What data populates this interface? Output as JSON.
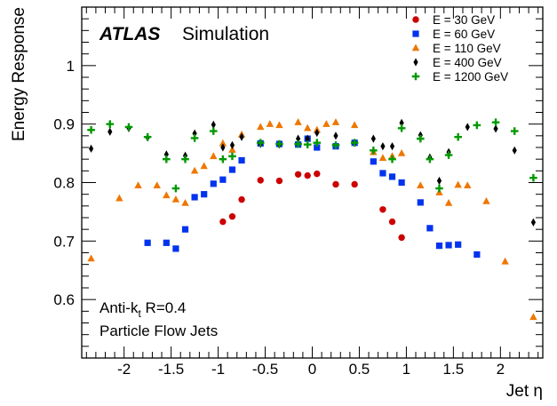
{
  "chart_data": {
    "type": "scatter",
    "xlabel": "Jet η",
    "ylabel": "Energy Response",
    "xlim": [
      -2.45,
      2.45
    ],
    "ylim": [
      0.5,
      1.1
    ],
    "x_ticks": [
      "-2",
      "-1.5",
      "-1",
      "-0.5",
      "0",
      "0.5",
      "1",
      "1.5",
      "2"
    ],
    "y_ticks": [
      "0.6",
      "0.7",
      "0.8",
      "0.9",
      "1"
    ],
    "atlas_label": "ATLAS",
    "atlas_sublabel": "Simulation",
    "annotations": {
      "algorithm": "Anti-k",
      "algorithm_sub": "t",
      "algorithm_rest": " R=0.4",
      "jet_type": "Particle Flow Jets"
    },
    "legend_position": "top-right",
    "series": [
      {
        "name": "E = 30 GeV",
        "color": "#cc0000",
        "marker": "circle",
        "x": [
          -0.95,
          -0.85,
          -0.75,
          -0.55,
          -0.35,
          -0.15,
          -0.05,
          0.05,
          0.25,
          0.45,
          0.75,
          0.85,
          0.95
        ],
        "y": [
          0.733,
          0.742,
          0.771,
          0.804,
          0.803,
          0.814,
          0.812,
          0.815,
          0.797,
          0.797,
          0.754,
          0.733,
          0.706
        ]
      },
      {
        "name": "E = 60 GeV",
        "color": "#0033ee",
        "marker": "square",
        "x": [
          -1.75,
          -1.55,
          -1.45,
          -1.35,
          -1.25,
          -1.15,
          -1.05,
          -0.95,
          -0.85,
          -0.75,
          -0.55,
          -0.35,
          -0.15,
          -0.05,
          0.05,
          0.25,
          0.45,
          0.65,
          0.75,
          0.85,
          0.95,
          1.15,
          1.25,
          1.35,
          1.45,
          1.55,
          1.75
        ],
        "y": [
          0.697,
          0.697,
          0.687,
          0.72,
          0.775,
          0.78,
          0.798,
          0.805,
          0.822,
          0.838,
          0.867,
          0.866,
          0.865,
          0.875,
          0.86,
          0.862,
          0.868,
          0.836,
          0.816,
          0.81,
          0.8,
          0.766,
          0.722,
          0.692,
          0.693,
          0.694,
          0.677
        ]
      },
      {
        "name": "E = 110 GeV",
        "color": "#ee7700",
        "marker": "triangle",
        "x": [
          -2.35,
          -2.05,
          -1.85,
          -1.65,
          -1.55,
          -1.45,
          -1.35,
          -1.25,
          -1.15,
          -1.05,
          -0.95,
          -0.85,
          -0.75,
          -0.55,
          -0.45,
          -0.35,
          -0.15,
          -0.05,
          0.05,
          0.15,
          0.25,
          0.45,
          0.65,
          0.75,
          0.85,
          0.95,
          1.15,
          1.35,
          1.45,
          1.55,
          1.65,
          1.85,
          2.05,
          2.35
        ],
        "y": [
          0.67,
          0.773,
          0.795,
          0.795,
          0.778,
          0.771,
          0.765,
          0.82,
          0.828,
          0.845,
          0.867,
          0.856,
          0.882,
          0.895,
          0.9,
          0.898,
          0.903,
          0.893,
          0.89,
          0.9,
          0.903,
          0.898,
          0.852,
          0.842,
          0.845,
          0.85,
          0.795,
          0.783,
          0.765,
          0.796,
          0.795,
          0.768,
          0.665,
          0.57
        ]
      },
      {
        "name": "E = 400 GeV",
        "color": "#000000",
        "marker": "diamond",
        "x": [
          -2.35,
          -2.15,
          -1.95,
          -1.75,
          -1.55,
          -1.35,
          -1.25,
          -1.05,
          -0.95,
          -0.85,
          -0.75,
          -0.55,
          -0.35,
          -0.15,
          -0.05,
          0.05,
          0.25,
          0.45,
          0.65,
          0.75,
          0.85,
          0.95,
          1.15,
          1.25,
          1.35,
          1.45,
          1.65,
          1.95,
          2.15,
          2.35
        ],
        "y": [
          0.858,
          0.887,
          0.893,
          0.877,
          0.848,
          0.846,
          0.884,
          0.899,
          0.86,
          0.864,
          0.878,
          0.866,
          0.865,
          0.875,
          0.875,
          0.885,
          0.88,
          0.868,
          0.875,
          0.862,
          0.862,
          0.902,
          0.881,
          0.843,
          0.803,
          0.852,
          0.895,
          0.892,
          0.855,
          0.732
        ]
      },
      {
        "name": "E = 1200 GeV",
        "color": "#009900",
        "marker": "plus",
        "x": [
          -2.35,
          -2.15,
          -1.95,
          -1.75,
          -1.55,
          -1.45,
          -1.35,
          -1.25,
          -1.05,
          -0.95,
          -0.85,
          -0.55,
          -0.35,
          -0.15,
          -0.05,
          0.05,
          0.25,
          0.45,
          0.65,
          0.85,
          0.95,
          1.15,
          1.25,
          1.35,
          1.45,
          1.55,
          1.75,
          1.95,
          2.15,
          2.35
        ],
        "y": [
          0.89,
          0.9,
          0.895,
          0.878,
          0.84,
          0.79,
          0.84,
          0.876,
          0.888,
          0.84,
          0.845,
          0.868,
          0.866,
          0.866,
          0.865,
          0.868,
          0.864,
          0.868,
          0.855,
          0.84,
          0.893,
          0.875,
          0.84,
          0.79,
          0.847,
          0.878,
          0.898,
          0.903,
          0.888,
          0.808
        ]
      }
    ]
  }
}
